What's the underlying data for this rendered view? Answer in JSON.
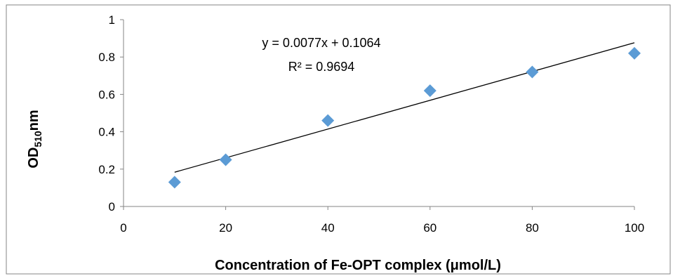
{
  "chart_data": {
    "type": "scatter",
    "xlabel": "Concentration of Fe-OPT complex (μmol/L)",
    "ylabel": {
      "main": "OD",
      "sub": "510",
      "suffix": "nm"
    },
    "xlim": [
      0,
      100
    ],
    "ylim": [
      0,
      1
    ],
    "x_ticks": [
      {
        "value": 0,
        "label": "0"
      },
      {
        "value": 20,
        "label": "20"
      },
      {
        "value": 40,
        "label": "40"
      },
      {
        "value": 60,
        "label": "60"
      },
      {
        "value": 80,
        "label": "80"
      },
      {
        "value": 100,
        "label": "100"
      }
    ],
    "y_ticks": [
      {
        "value": 0,
        "label": "0"
      },
      {
        "value": 0.2,
        "label": "0.2"
      },
      {
        "value": 0.4,
        "label": "0.4"
      },
      {
        "value": 0.6,
        "label": "0.6"
      },
      {
        "value": 0.8,
        "label": "0.8"
      },
      {
        "value": 1,
        "label": "1"
      }
    ],
    "grid": false,
    "series": [
      {
        "color": "#5b9bd5",
        "marker": "diamond",
        "points": [
          {
            "x": 10,
            "y": 0.13
          },
          {
            "x": 20,
            "y": 0.25
          },
          {
            "x": 40,
            "y": 0.46
          },
          {
            "x": 60,
            "y": 0.62
          },
          {
            "x": 80,
            "y": 0.72
          },
          {
            "x": 100,
            "y": 0.82
          }
        ]
      }
    ],
    "trendline": {
      "slope": 0.0077,
      "intercept": 0.1064,
      "x_range": [
        10,
        100
      ],
      "color": "#000000",
      "equation": "y = 0.0077x + 0.1064",
      "r_squared": "R² = 0.9694"
    }
  }
}
